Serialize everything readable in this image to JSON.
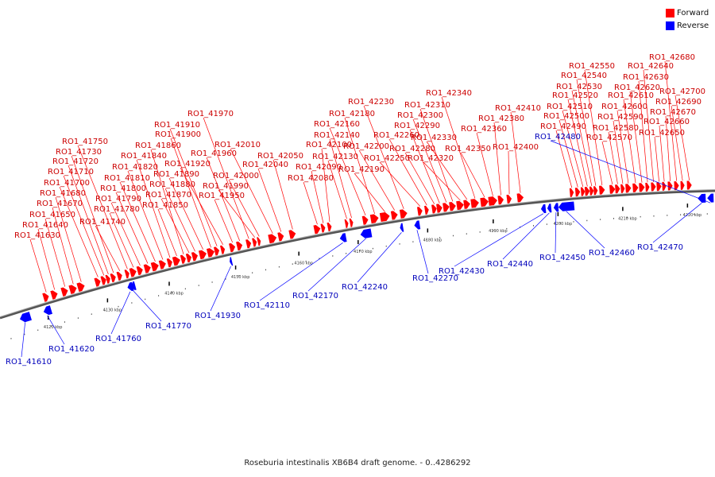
{
  "caption": "Roseburia intestinalis XB6B4 draft genome. - 0..4286292",
  "legend": {
    "forward_label": "Forward",
    "reverse_label": "Reverse",
    "forward_color": "#ff0000",
    "reverse_color": "#0000ff"
  },
  "axis_ticks": [
    "4120 kbp",
    "4130 kbp",
    "4140 kbp",
    "4150 kbp",
    "4160 kbp",
    "4170 kbp",
    "4180 kbp",
    "4190 kbp",
    "4200 kbp",
    "4210 kbp",
    "4220 kbp"
  ],
  "forward_genes": [
    "RO1_41630",
    "RO1_41640",
    "RO1_41650",
    "RO1_41670",
    "RO1_41680",
    "RO1_41700",
    "RO1_41710",
    "RO1_41720",
    "RO1_41730",
    "RO1_41740",
    "RO1_41750",
    "RO1_41780",
    "RO1_41790",
    "RO1_41800",
    "RO1_41810",
    "RO1_41820",
    "RO1_41840",
    "RO1_41850",
    "RO1_41860",
    "RO1_41870",
    "RO1_41880",
    "RO1_41890",
    "RO1_41900",
    "RO1_41910",
    "RO1_41920",
    "RO1_41950",
    "RO1_41960",
    "RO1_41970",
    "RO1_41990",
    "RO1_42000",
    "RO1_42010",
    "RO1_42040",
    "RO1_42050",
    "RO1_42080",
    "RO1_42090",
    "RO1_42100",
    "RO1_42130",
    "RO1_42140",
    "RO1_42160",
    "RO1_42180",
    "RO1_42190",
    "RO1_42200",
    "RO1_42230",
    "RO1_42250",
    "RO1_42260",
    "RO1_42280",
    "RO1_42290",
    "RO1_42300",
    "RO1_42310",
    "RO1_42320",
    "RO1_42330",
    "RO1_42340",
    "RO1_42350",
    "RO1_42360",
    "RO1_42380",
    "RO1_42400",
    "RO1_42410",
    "RO1_42490",
    "RO1_42500",
    "RO1_42510",
    "RO1_42520",
    "RO1_42530",
    "RO1_42540",
    "RO1_42550",
    "RO1_42570",
    "RO1_42580",
    "RO1_42590",
    "RO1_42600",
    "RO1_42610",
    "RO1_42620",
    "RO1_42630",
    "RO1_42640",
    "RO1_42650",
    "RO1_42660",
    "RO1_42670",
    "RO1_42680",
    "RO1_42690",
    "RO1_42700"
  ],
  "reverse_genes": [
    "RO1_41610",
    "RO1_41620",
    "RO1_41760",
    "RO1_41770",
    "RO1_41930",
    "RO1_42110",
    "RO1_42170",
    "RO1_42240",
    "RO1_42270",
    "RO1_42430",
    "RO1_42440",
    "RO1_42450",
    "RO1_42460",
    "RO1_42470",
    "RO1_42480"
  ]
}
